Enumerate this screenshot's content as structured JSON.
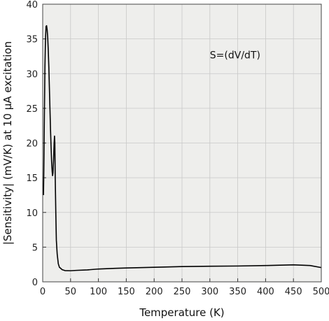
{
  "chart_data": {
    "type": "line",
    "title": "",
    "xlabel": "Temperature (K)",
    "ylabel": "|Sensitivity| (mV/K) at 10 µA excitation",
    "xlim": [
      0,
      500
    ],
    "ylim": [
      0,
      40
    ],
    "x_ticks": [
      0,
      50,
      100,
      150,
      200,
      250,
      300,
      350,
      400,
      450,
      500
    ],
    "y_ticks": [
      0,
      5,
      10,
      15,
      20,
      25,
      30,
      35,
      40
    ],
    "grid": true,
    "legend": "none",
    "annotation": "S=(dV/dT)",
    "colors": {
      "background": "#eeeeec",
      "grid": "#c8c8c8",
      "line": "#000000"
    },
    "series": [
      {
        "points": [
          [
            1.4,
            12.5
          ],
          [
            2,
            16
          ],
          [
            3,
            24
          ],
          [
            4,
            31
          ],
          [
            5,
            35
          ],
          [
            6,
            36.8
          ],
          [
            7,
            36.9
          ],
          [
            8,
            36.3
          ],
          [
            9,
            35.2
          ],
          [
            10,
            33.3
          ],
          [
            11,
            31
          ],
          [
            12,
            28
          ],
          [
            13,
            25
          ],
          [
            14,
            22
          ],
          [
            15,
            19.5
          ],
          [
            16,
            17.3
          ],
          [
            17,
            15.9
          ],
          [
            17.7,
            15.3
          ],
          [
            18.5,
            15.7
          ],
          [
            19.5,
            17.5
          ],
          [
            20.5,
            20
          ],
          [
            21.2,
            21
          ],
          [
            21.8,
            20
          ],
          [
            22.5,
            15
          ],
          [
            23.5,
            10
          ],
          [
            24.5,
            6
          ],
          [
            26,
            4
          ],
          [
            28,
            2.6
          ],
          [
            30,
            2.1
          ],
          [
            35,
            1.75
          ],
          [
            40,
            1.62
          ],
          [
            50,
            1.6
          ],
          [
            60,
            1.65
          ],
          [
            80,
            1.72
          ],
          [
            100,
            1.85
          ],
          [
            130,
            1.95
          ],
          [
            150,
            2.0
          ],
          [
            200,
            2.1
          ],
          [
            250,
            2.2
          ],
          [
            300,
            2.25
          ],
          [
            350,
            2.28
          ],
          [
            400,
            2.35
          ],
          [
            450,
            2.45
          ],
          [
            480,
            2.35
          ],
          [
            500,
            2.05
          ]
        ]
      }
    ]
  }
}
